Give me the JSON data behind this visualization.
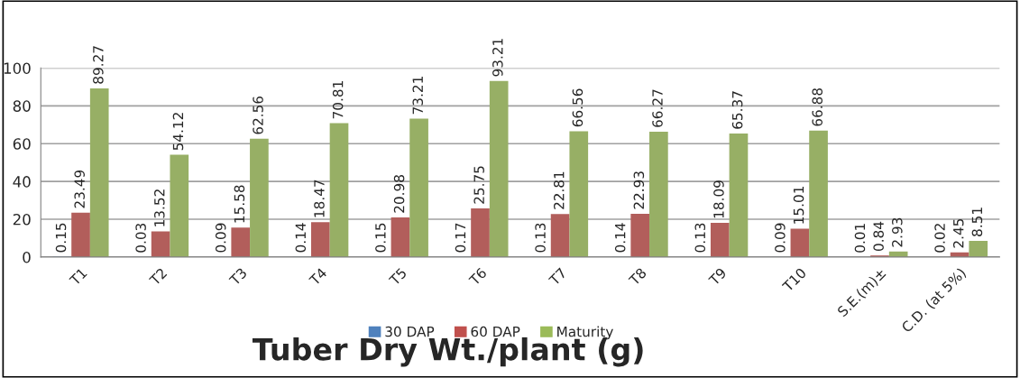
{
  "chart_data": {
    "type": "bar",
    "title": "Tuber Dry Wt./plant (g)",
    "categories": [
      "T1",
      "T2",
      "T3",
      "T4",
      "T5",
      "T6",
      "T7",
      "T8",
      "T9",
      "T10",
      "S.E.(m)±",
      "C.D. (at 5%)"
    ],
    "series": [
      {
        "name": "30 DAP",
        "color": "#4f81bd",
        "values": [
          0.15,
          0.03,
          0.09,
          0.14,
          0.15,
          0.17,
          0.13,
          0.14,
          0.13,
          0.09,
          0.01,
          0.02
        ]
      },
      {
        "name": "60 DAP",
        "color": "#c0504d",
        "values": [
          23.49,
          13.52,
          15.58,
          18.47,
          20.98,
          25.75,
          22.81,
          22.93,
          18.09,
          15.01,
          0.84,
          2.45
        ]
      },
      {
        "name": "Maturity",
        "color": "#9bbb59",
        "values": [
          89.27,
          54.12,
          62.56,
          70.81,
          73.21,
          93.21,
          66.56,
          66.27,
          65.37,
          66.88,
          2.93,
          8.51
        ]
      }
    ],
    "ylim": [
      0,
      100
    ],
    "yticks": [
      0,
      20,
      40,
      60,
      80,
      100
    ],
    "grid": "y",
    "legend": "bottom",
    "data_labels": true
  }
}
